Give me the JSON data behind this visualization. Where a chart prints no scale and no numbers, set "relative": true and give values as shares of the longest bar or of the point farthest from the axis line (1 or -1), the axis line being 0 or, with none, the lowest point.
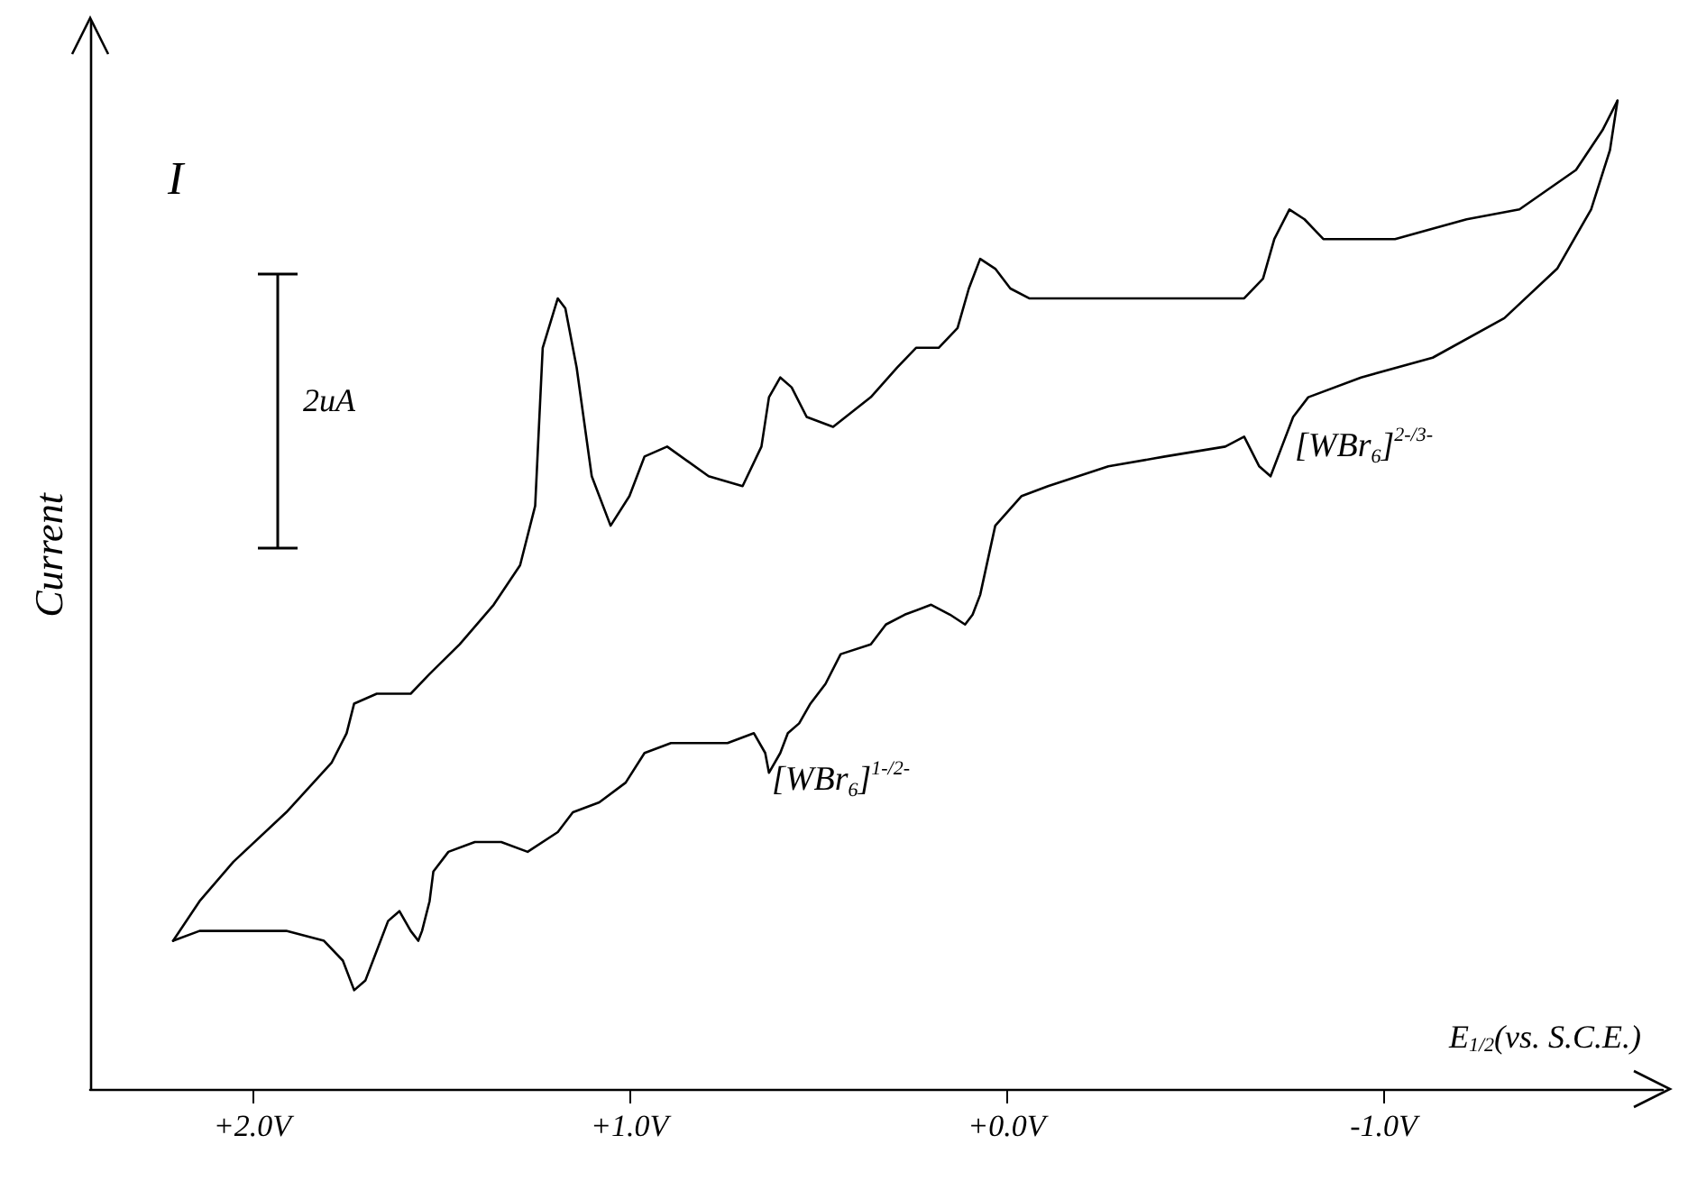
{
  "chart_data": {
    "type": "line",
    "relative": true,
    "xlabel": "E$_{1/2}$(vs. S.C.E.)",
    "ylabel": "Current",
    "annotations": [
      "I",
      "2uA",
      "[WBr$_{6}$]$^{2-/3-}$",
      "[WBr$_{6}$]$^{1-/2-}$"
    ],
    "xlim": [
      2.43,
      -1.74
    ],
    "xticks": [
      {
        "value": 2,
        "label": "+2.0V"
      },
      {
        "value": 1,
        "label": "+1.0V"
      },
      {
        "value": 0,
        "label": "+0.0V"
      },
      {
        "value": -1,
        "label": "-1.0V"
      }
    ],
    "grid": false,
    "marker": "none",
    "line_style": "solid",
    "series": [
      {
        "color": "#000000",
        "x": [
          2.21,
          2.14,
          2.05,
          1.91,
          1.79,
          1.75,
          1.73,
          1.67,
          1.58,
          1.53,
          1.45,
          1.36,
          1.29,
          1.25,
          1.24,
          1.23,
          1.19,
          1.17,
          1.14,
          1.1,
          1.05,
          1.0,
          0.96,
          0.9,
          0.79,
          0.7,
          0.65,
          0.63,
          0.6,
          0.57,
          0.53,
          0.46,
          0.36,
          0.29,
          0.24,
          0.18,
          0.13,
          0.1,
          0.07,
          0.03,
          -0.01,
          -0.06,
          -0.18,
          -0.27,
          -0.56,
          -0.63,
          -0.68,
          -0.71,
          -0.75,
          -0.79,
          -0.84,
          -0.91,
          -1.03,
          -1.22,
          -1.36,
          -1.51,
          -1.58,
          -1.62
        ],
        "values": [
          0.15,
          0.19,
          0.23,
          0.28,
          0.33,
          0.36,
          0.39,
          0.4,
          0.4,
          0.42,
          0.45,
          0.49,
          0.53,
          0.59,
          0.67,
          0.75,
          0.8,
          0.79,
          0.73,
          0.62,
          0.57,
          0.6,
          0.64,
          0.65,
          0.62,
          0.61,
          0.65,
          0.7,
          0.72,
          0.71,
          0.68,
          0.67,
          0.7,
          0.73,
          0.75,
          0.75,
          0.77,
          0.81,
          0.84,
          0.83,
          0.81,
          0.8,
          0.8,
          0.8,
          0.8,
          0.8,
          0.82,
          0.86,
          0.89,
          0.88,
          0.86,
          0.86,
          0.86,
          0.88,
          0.89,
          0.93,
          0.97,
          1.0
        ]
      },
      {
        "color": "#000000",
        "x": [
          -1.62,
          -1.6,
          -1.55,
          -1.46,
          -1.32,
          -1.13,
          -0.94,
          -0.8,
          -0.76,
          -0.73,
          -0.7,
          -0.67,
          -0.63,
          -0.58,
          -0.42,
          -0.27,
          -0.11,
          -0.04,
          0.03,
          0.07,
          0.09,
          0.11,
          0.15,
          0.2,
          0.27,
          0.32,
          0.36,
          0.44,
          0.48,
          0.52,
          0.55,
          0.58,
          0.6,
          0.63,
          0.64,
          0.67,
          0.74,
          0.82,
          0.89,
          0.96,
          1.01,
          1.08,
          1.15,
          1.19,
          1.27,
          1.34,
          1.41,
          1.48,
          1.52,
          1.53,
          1.55,
          1.56,
          1.58,
          1.61,
          1.64,
          1.67,
          1.7,
          1.73,
          1.76,
          1.81,
          1.91,
          2.05,
          2.14,
          2.21
        ],
        "values": [
          1.0,
          0.95,
          0.89,
          0.83,
          0.78,
          0.74,
          0.72,
          0.7,
          0.68,
          0.65,
          0.62,
          0.63,
          0.66,
          0.65,
          0.64,
          0.63,
          0.61,
          0.6,
          0.57,
          0.5,
          0.48,
          0.47,
          0.48,
          0.49,
          0.48,
          0.47,
          0.45,
          0.44,
          0.41,
          0.39,
          0.37,
          0.36,
          0.34,
          0.32,
          0.34,
          0.36,
          0.35,
          0.35,
          0.35,
          0.34,
          0.31,
          0.29,
          0.28,
          0.26,
          0.24,
          0.25,
          0.25,
          0.24,
          0.22,
          0.19,
          0.16,
          0.15,
          0.16,
          0.18,
          0.17,
          0.14,
          0.11,
          0.1,
          0.13,
          0.15,
          0.16,
          0.16,
          0.16,
          0.15
        ]
      }
    ]
  }
}
